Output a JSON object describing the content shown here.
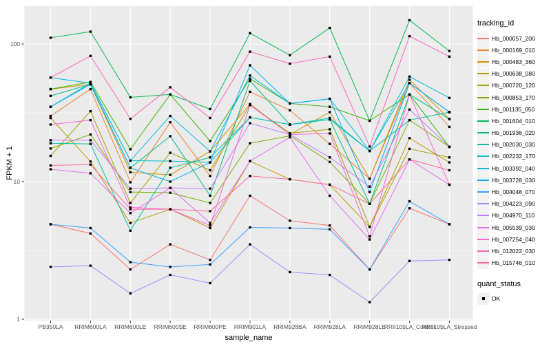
{
  "figure": {
    "background": "#ffffff",
    "panel_background": "#EBEBEB",
    "grid_color": "#FFFFFF",
    "tick_color": "#333333",
    "tick_label_color": "#4D4D4D",
    "point_color": "#000000"
  },
  "chart_data": {
    "type": "line",
    "title": "",
    "xlabel": "sample_name",
    "ylabel": "FPKM + 1",
    "yscale": "log10",
    "yticks": [
      1,
      10,
      100
    ],
    "ylim": [
      1,
      190
    ],
    "grid": true,
    "legend_position": "right",
    "point_shape": "filled-square",
    "categories": [
      "PB350LA",
      "RRIM600LA",
      "RRIM600LE",
      "RRIM600SE",
      "RRIM600PE",
      "RRIM901LA",
      "RRIM928BA",
      "RRIM928LA",
      "RRIM928LE",
      "RRII105LA_Control",
      "RRII105LA_Stressed"
    ],
    "legends": {
      "tracking": {
        "title": "tracking_id"
      },
      "quant": {
        "title": "quant_status",
        "items": [
          "OK"
        ]
      }
    },
    "series": [
      {
        "name": "Hb_000057_200",
        "color": "#F8766D",
        "values": [
          4.9,
          4.2,
          2.3,
          3.5,
          2.7,
          7.9,
          5.2,
          4.8,
          2.3,
          6.4,
          4.9
        ]
      },
      {
        "name": "Hb_000169_010",
        "color": "#EA8331",
        "values": [
          30,
          47,
          9.9,
          27,
          11,
          45,
          33,
          18.8,
          10.5,
          52,
          25
        ]
      },
      {
        "name": "Hb_000483_360",
        "color": "#D89000",
        "values": [
          47,
          51,
          11.7,
          11.2,
          16.6,
          36.6,
          22,
          32,
          10.5,
          55,
          28.5
        ]
      },
      {
        "name": "Hb_000638_080",
        "color": "#C09B00",
        "values": [
          29,
          14,
          5.0,
          6.3,
          4.6,
          14.1,
          10.4,
          9.5,
          4.7,
          20.7,
          13.8
        ]
      },
      {
        "name": "Hb_000720_120",
        "color": "#A3A500",
        "values": [
          15.4,
          32.5,
          7.0,
          16.2,
          12.1,
          36,
          22.5,
          24,
          4.7,
          17.3,
          15
        ]
      },
      {
        "name": "Hb_000853_170",
        "color": "#7CAE00",
        "values": [
          17.4,
          22,
          8.4,
          8.3,
          7.0,
          19,
          21.5,
          13.9,
          6.9,
          28,
          17.9
        ]
      },
      {
        "name": "Hb_001135_050",
        "color": "#39B600",
        "values": [
          47,
          53,
          17.2,
          43,
          19.7,
          56,
          37,
          35,
          27.7,
          43,
          17.9
        ]
      },
      {
        "name": "Hb_001604_010",
        "color": "#00BB4E",
        "values": [
          111,
          123,
          41,
          43,
          33.7,
          120,
          83,
          131,
          27.7,
          149,
          89
        ]
      },
      {
        "name": "Hb_001936_020",
        "color": "#00BF7D",
        "values": [
          42,
          51,
          12.6,
          21.4,
          7.9,
          54,
          26,
          28.3,
          6.9,
          43,
          28.5
        ]
      },
      {
        "name": "Hb_002030_030",
        "color": "#00C1A3",
        "values": [
          19,
          18.8,
          4.4,
          12.6,
          15,
          29.3,
          26,
          28.3,
          16.7,
          28,
          32
        ]
      },
      {
        "name": "Hb_002232_170",
        "color": "#00BFC4",
        "values": [
          35,
          52,
          14.2,
          14.1,
          13.8,
          29.3,
          26,
          29,
          16.7,
          52,
          32
        ]
      },
      {
        "name": "Hb_003392_040",
        "color": "#00BAE0",
        "values": [
          57,
          52,
          14.2,
          30,
          16.6,
          59,
          37,
          40,
          16.7,
          58,
          40.6
        ]
      },
      {
        "name": "Hb_003728_030",
        "color": "#00B0F6",
        "values": [
          35,
          51,
          12.6,
          10,
          13.8,
          70,
          37,
          40,
          8.4,
          52,
          32
        ]
      },
      {
        "name": "Hb_004048_070",
        "color": "#35A2FF",
        "values": [
          4.9,
          4.6,
          2.6,
          2.4,
          2.5,
          4.65,
          4.6,
          4.5,
          2.3,
          7.2,
          4.9
        ]
      },
      {
        "name": "Hb_004223_090",
        "color": "#9590FF",
        "values": [
          2.4,
          2.45,
          1.54,
          2.1,
          1.83,
          3.5,
          2.2,
          2.1,
          1.33,
          2.65,
          2.7
        ]
      },
      {
        "name": "Hb_004970_110",
        "color": "#C77CFF",
        "values": [
          20,
          20,
          8.9,
          9.0,
          8.9,
          26.6,
          22,
          15,
          9.2,
          33.4,
          17.9
        ]
      },
      {
        "name": "Hb_005539_030",
        "color": "#E76BF3",
        "values": [
          12.3,
          11.5,
          5.9,
          9.0,
          5.0,
          14.1,
          21,
          7.9,
          3.8,
          14.5,
          9.5
        ]
      },
      {
        "name": "Hb_007254_040",
        "color": "#FA62DB",
        "values": [
          26,
          28,
          6.5,
          6.3,
          4.8,
          36,
          22,
          22.4,
          4.0,
          43,
          9.5
        ]
      },
      {
        "name": "Hb_012022_030",
        "color": "#FF62BC",
        "values": [
          57,
          82,
          28.6,
          48.5,
          29,
          88,
          72,
          81,
          18,
          114,
          81
        ]
      },
      {
        "name": "Hb_015746_010",
        "color": "#FF6A98",
        "values": [
          13.1,
          13.3,
          6.3,
          6.3,
          6.1,
          11,
          10.4,
          9.5,
          6.9,
          14.5,
          12.1
        ]
      }
    ]
  }
}
